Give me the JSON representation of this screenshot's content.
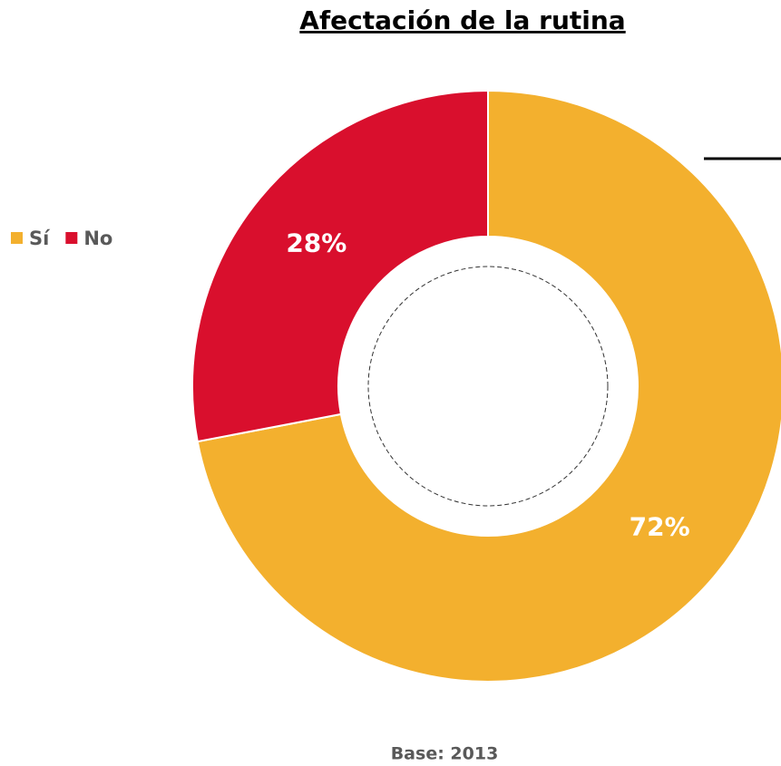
{
  "chart_data": {
    "type": "donut",
    "title": "Afectación de la rutina",
    "categories": [
      "Sí",
      "No"
    ],
    "values": [
      72,
      28
    ],
    "value_labels": [
      "72%",
      "28%"
    ],
    "colors": [
      "#F3B02E",
      "#D90F2D"
    ],
    "legend": "left",
    "footnote": "Base: 2013"
  }
}
